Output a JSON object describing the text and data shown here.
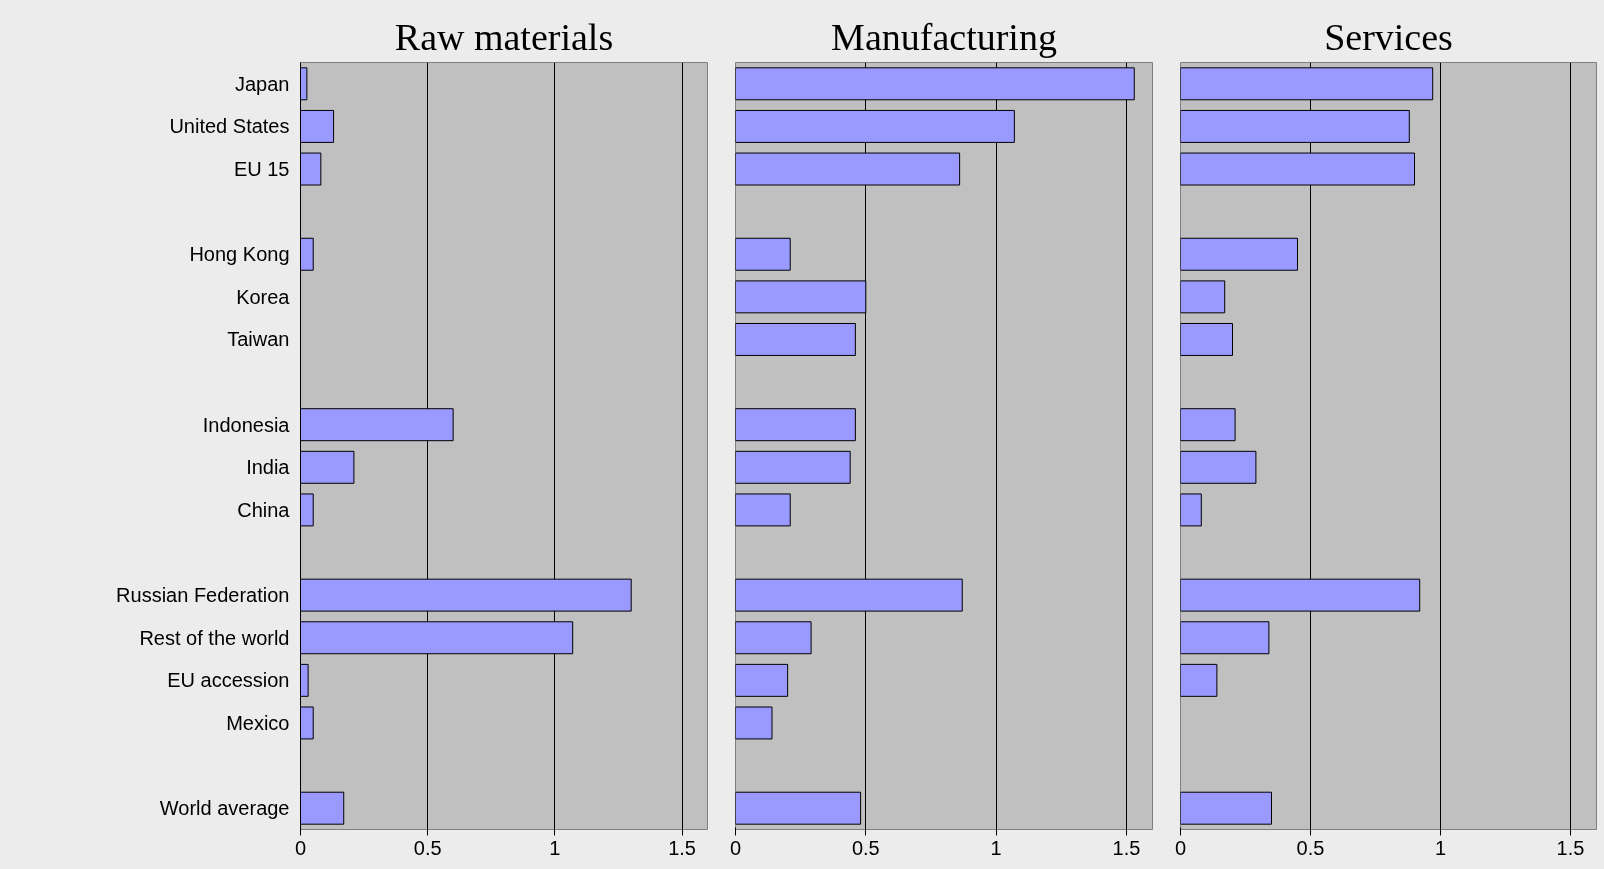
{
  "chart_data": [
    {
      "type": "bar",
      "orientation": "horizontal",
      "title": "Raw materials",
      "categories": [
        "Japan",
        "United States",
        "EU 15",
        null,
        "Hong Kong",
        "Korea",
        "Taiwan",
        null,
        "Indonesia",
        "India",
        "China",
        null,
        "Russian Federation",
        "Rest of the world",
        "EU accession",
        "Mexico",
        null,
        "World average"
      ],
      "values": [
        0.025,
        0.13,
        0.08,
        null,
        0.05,
        null,
        null,
        null,
        0.6,
        0.21,
        0.05,
        null,
        1.3,
        1.07,
        0.03,
        0.05,
        null,
        0.17
      ],
      "color": "#9999ff",
      "xlim": [
        0,
        1.6
      ],
      "xticks": [
        0,
        0.5,
        1,
        1.5
      ],
      "grid": "x"
    },
    {
      "type": "bar",
      "orientation": "horizontal",
      "title": "Manufacturing",
      "values": [
        1.53,
        1.07,
        0.86,
        null,
        0.21,
        0.5,
        0.46,
        null,
        0.46,
        0.44,
        0.21,
        null,
        0.87,
        0.29,
        0.2,
        0.14,
        null,
        0.48
      ],
      "color": "#9999ff",
      "xlim": [
        0,
        1.6
      ],
      "xticks": [
        0,
        0.5,
        1,
        1.5
      ],
      "grid": "x",
      "tick_labels": "x"
    },
    {
      "type": "bar",
      "orientation": "horizontal",
      "title": "Services",
      "values": [
        0.97,
        0.88,
        0.9,
        null,
        0.45,
        0.17,
        0.2,
        null,
        0.21,
        0.29,
        0.08,
        null,
        0.92,
        0.34,
        0.14,
        null,
        null,
        0.35
      ],
      "color": "#9999ff",
      "xlim": [
        0,
        1.6
      ],
      "xticks": [
        0,
        0.5,
        1,
        1.5
      ],
      "grid": "x",
      "tick_labels": "x"
    }
  ]
}
